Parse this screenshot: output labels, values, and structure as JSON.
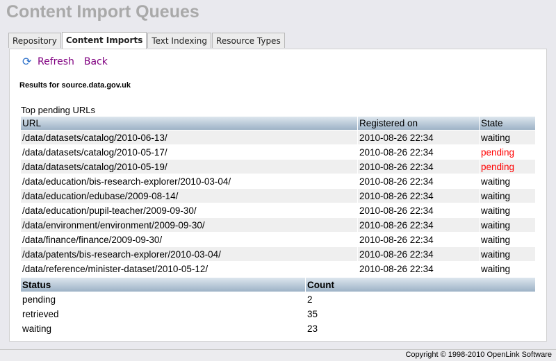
{
  "title": "Content Import Queues",
  "tabs": [
    {
      "label": "Repository"
    },
    {
      "label": "Content Imports",
      "active": true
    },
    {
      "label": "Text Indexing"
    },
    {
      "label": "Resource Types"
    }
  ],
  "actions": {
    "refresh": "Refresh",
    "back": "Back",
    "refresh_icon": "refresh-icon"
  },
  "results_label": "Results for source.data.gov.uk",
  "pending_title": "Top pending URLs",
  "url_table": {
    "headers": [
      "URL",
      "Registered on",
      "State"
    ],
    "rows": [
      [
        "/data/datasets/catalog/2010-06-13/",
        "2010-08-26 22:34",
        "waiting"
      ],
      [
        "/data/datasets/catalog/2010-05-17/",
        "2010-08-26 22:34",
        "pending"
      ],
      [
        "/data/datasets/catalog/2010-05-19/",
        "2010-08-26 22:34",
        "pending"
      ],
      [
        "/data/education/bis-research-explorer/2010-03-04/",
        "2010-08-26 22:34",
        "waiting"
      ],
      [
        "/data/education/edubase/2009-08-14/",
        "2010-08-26 22:34",
        "waiting"
      ],
      [
        "/data/education/pupil-teacher/2009-09-30/",
        "2010-08-26 22:34",
        "waiting"
      ],
      [
        "/data/environment/environment/2009-09-30/",
        "2010-08-26 22:34",
        "waiting"
      ],
      [
        "/data/finance/finance/2009-09-30/",
        "2010-08-26 22:34",
        "waiting"
      ],
      [
        "/data/patents/bis-research-explorer/2010-03-04/",
        "2010-08-26 22:34",
        "waiting"
      ],
      [
        "/data/reference/minister-dataset/2010-05-12/",
        "2010-08-26 22:34",
        "waiting"
      ]
    ]
  },
  "status_table": {
    "headers": [
      "Status",
      "Count"
    ],
    "rows": [
      [
        "pending",
        "2"
      ],
      [
        "retrieved",
        "35"
      ],
      [
        "waiting",
        "23"
      ]
    ]
  },
  "footer": "Copyright © 1998-2010 OpenLink Software",
  "colors": {
    "pending": "#ff0000",
    "link": "#800080"
  }
}
